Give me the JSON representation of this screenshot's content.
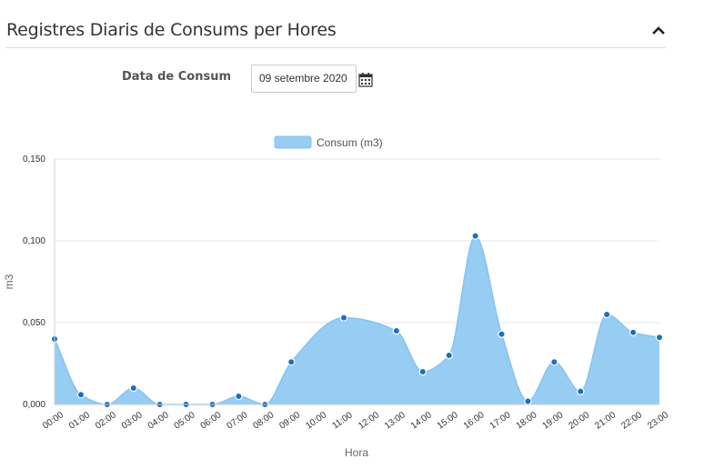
{
  "panel": {
    "title": "Registres Diaris de Consums per Hores",
    "collapse_icon": "chevron-up-icon"
  },
  "form": {
    "date_label": "Data de Consum",
    "date_value": "09 setembre 2020",
    "calendar_icon": "calendar-icon"
  },
  "colors": {
    "area_fill": "#97cdf3",
    "area_stroke": "#87c3ee",
    "point": "#1a6fc2",
    "grid": "#e6e6e6"
  },
  "chart_data": {
    "type": "area",
    "legend_position": "top-center",
    "grid": true,
    "xlabel": "Hora",
    "ylabel": "m3",
    "ylim": [
      0,
      0.15
    ],
    "y_ticks": [
      "0,000",
      "0,050",
      "0,100",
      "0,150"
    ],
    "categories": [
      "00:00",
      "01:00",
      "02:00",
      "03:00",
      "04:00",
      "05:00",
      "06:00",
      "07:00",
      "08:00",
      "09:00",
      "10:00",
      "11:00",
      "12:00",
      "13:00",
      "14:00",
      "15:00",
      "16:00",
      "17:00",
      "18:00",
      "19:00",
      "20:00",
      "21:00",
      "22:00",
      "23:00"
    ],
    "series": [
      {
        "name": "Consum (m3)",
        "values": [
          0.04,
          0.006,
          0.0,
          0.01,
          0.0,
          0.0,
          0.0,
          0.005,
          0.0,
          0.026,
          null,
          0.053,
          null,
          0.045,
          0.02,
          0.03,
          0.103,
          0.043,
          0.002,
          0.026,
          0.008,
          0.055,
          0.044,
          0.041
        ]
      }
    ]
  }
}
